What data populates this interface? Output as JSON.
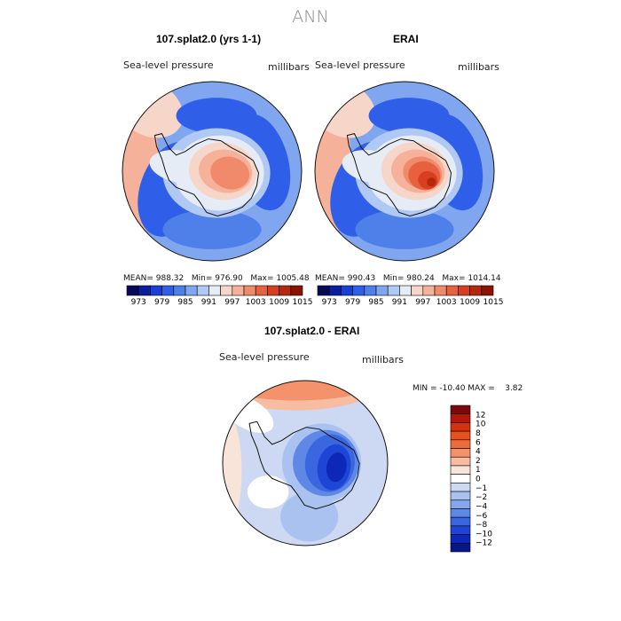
{
  "figure": {
    "title": "ANN"
  },
  "chart_data": [
    {
      "type": "heatmap",
      "title": "107.splat2.0 (yrs 1-1)",
      "variable": "Sea-level pressure",
      "units": "millibars",
      "stats": {
        "mean_label": "MEAN=",
        "mean": "988.32",
        "min_label": "Min=",
        "min": "976.90",
        "max_label": "Max=",
        "max": "1005.48"
      },
      "colorbar_ticks": [
        "973",
        "979",
        "985",
        "991",
        "997",
        "1003",
        "1009",
        "1015"
      ]
    },
    {
      "type": "heatmap",
      "title": "ERAI",
      "variable": "Sea-level pressure",
      "units": "millibars",
      "stats": {
        "mean_label": "MEAN=",
        "mean": "990.43",
        "min_label": "Min=",
        "min": "980.24",
        "max_label": "Max=",
        "max": "1014.14"
      },
      "colorbar_ticks": [
        "973",
        "979",
        "985",
        "991",
        "997",
        "1003",
        "1009",
        "1015"
      ]
    },
    {
      "type": "heatmap",
      "title": "107.splat2.0 - ERAI",
      "variable": "Sea-level pressure",
      "units": "millibars",
      "stats": {
        "text": "MIN = -10.40 MAX =    3.82"
      },
      "colorbar_ticks": [
        "12",
        "10",
        "8",
        "6",
        "4",
        "2",
        "1",
        "0",
        "−1",
        "−2",
        "−4",
        "−6",
        "−8",
        "−10",
        "−12"
      ]
    }
  ],
  "palettes": {
    "abs": [
      "#08085a",
      "#0b1e9e",
      "#1a3fd6",
      "#2f5fe8",
      "#4f7fe9",
      "#7fa6ef",
      "#b0c8f4",
      "#e6ecf6",
      "#f6d6c8",
      "#f6b19a",
      "#f08a6a",
      "#e8613f",
      "#d83e1f",
      "#b5280d",
      "#8b1204"
    ],
    "diff": [
      "#7a0a0a",
      "#b5160b",
      "#d4320f",
      "#e8501c",
      "#f06b3c",
      "#f4926c",
      "#f8bca2",
      "#f8e4d8",
      "#ffffff",
      "#cdd9f3",
      "#a9c2f0",
      "#85a6ec",
      "#5e87e6",
      "#3a66e0",
      "#1f45d6",
      "#0d28b8",
      "#061889"
    ]
  }
}
